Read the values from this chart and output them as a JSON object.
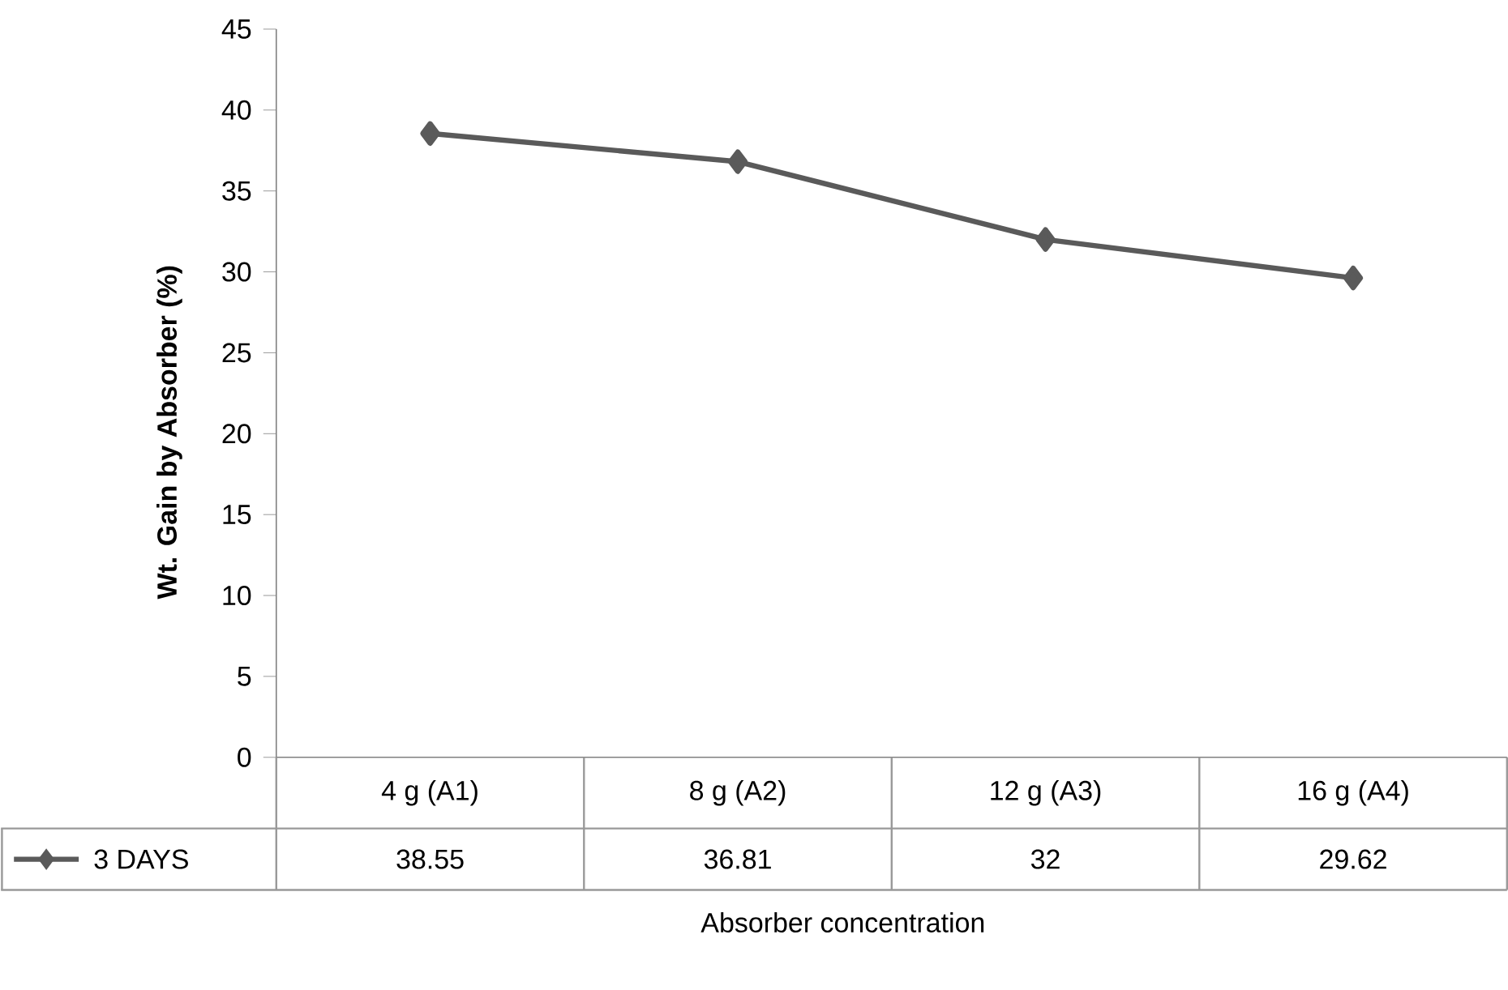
{
  "chart_data": {
    "type": "line",
    "xlabel": "Absorber concentration",
    "ylabel": "Wt. Gain by Absorber (%)",
    "categories": [
      "4 g (A1)",
      "8 g (A2)",
      "12 g (A3)",
      "16 g (A4)"
    ],
    "series": [
      {
        "name": "3 DAYS",
        "color": "#5a5a5a",
        "values": [
          38.55,
          36.81,
          32,
          29.62
        ]
      }
    ],
    "ylim": [
      0,
      45
    ],
    "yticks": [
      0,
      5,
      10,
      15,
      20,
      25,
      30,
      35,
      40,
      45
    ],
    "data_labels": true,
    "legend": "bottom left",
    "marker": "diamond",
    "line_style": "solid",
    "grid": false
  }
}
